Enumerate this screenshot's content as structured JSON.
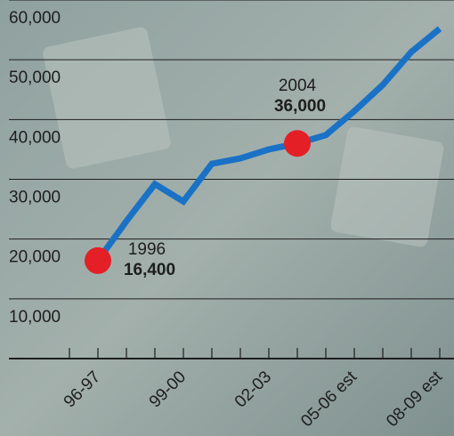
{
  "chart_data": {
    "type": "line",
    "categories": [
      null,
      "96-97",
      null,
      null,
      "99-00",
      null,
      null,
      "02-03",
      null,
      null,
      "05-06 est",
      null,
      null,
      "08-09 est"
    ],
    "series": [
      {
        "color": "#1a72c6",
        "values": [
          null,
          16400,
          23000,
          29200,
          26300,
          32600,
          33500,
          35000,
          36000,
          37400,
          41400,
          45800,
          51300,
          55200
        ]
      }
    ],
    "ylim": [
      0,
      60000
    ],
    "yticks": [
      {
        "value": 10000,
        "label": "10,000"
      },
      {
        "value": 20000,
        "label": "20,000"
      },
      {
        "value": 30000,
        "label": "30,000"
      },
      {
        "value": 40000,
        "label": "40,000"
      },
      {
        "value": 50000,
        "label": "50,000"
      },
      {
        "value": 60000,
        "label": "60,000"
      }
    ],
    "grid": true,
    "annotations": [
      {
        "text": "1996",
        "value": 16400,
        "value_label": "16,400",
        "color": "#e41f26"
      },
      {
        "text": "2004",
        "value": 36000,
        "value_label": "36,000",
        "color": "#e41f26"
      }
    ]
  }
}
